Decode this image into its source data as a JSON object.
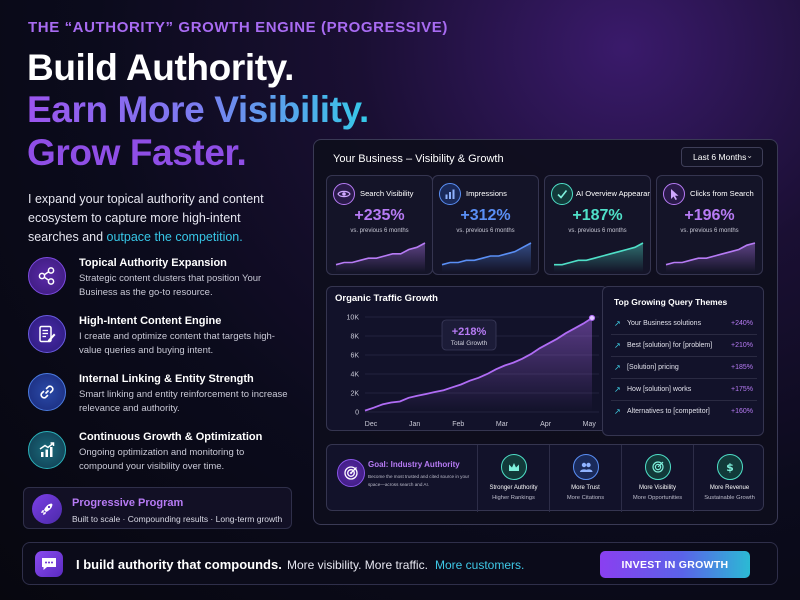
{
  "hero": {
    "kicker": "THE “AUTHORITY” GROWTH ENGINE (PROGRESSIVE)",
    "line1": "Build Authority.",
    "line2": "Earn More Visibility.",
    "line3": "Grow Faster.",
    "intro": "I expand your topical authority and content ecosystem to capture more high-intent searches and ",
    "intro_accent": "outpace the competition."
  },
  "features": [
    {
      "title": "Topical Authority Expansion",
      "desc": "Strategic content clusters that position Your Business as the go-to resource.",
      "icon": "share-nodes-icon"
    },
    {
      "title": "High-Intent Content Engine",
      "desc": "I create and optimize content that targets high-value queries and buying intent.",
      "icon": "document-edit-icon"
    },
    {
      "title": "Internal Linking & Entity Strength",
      "desc": "Smart linking and entity reinforcement to increase relevance and authority.",
      "icon": "link-icon"
    },
    {
      "title": "Continuous Growth & Optimization",
      "desc": "Ongoing optimization and monitoring to compound your visibility over time.",
      "icon": "growth-chart-icon"
    }
  ],
  "program": {
    "title": "Progressive Program",
    "subtitle": "Built to scale · Compounding results · Long-term growth",
    "icon": "rocket-icon"
  },
  "dashboard": {
    "title": "Your Business – Visibility & Growth",
    "period": "Last 6 Months",
    "metrics": [
      {
        "label": "Search Visibility",
        "value": "+235%",
        "compare": "vs. previous 6 months",
        "icon": "eye-icon",
        "color": "#b77bf5",
        "trend": [
          2,
          3,
          3,
          4,
          5,
          5,
          6,
          7,
          7,
          9,
          10,
          12
        ]
      },
      {
        "label": "Impressions",
        "value": "+312%",
        "compare": "vs. previous 6 months",
        "icon": "bar-chart-icon",
        "color": "#5a8ff5",
        "trend": [
          2,
          3,
          3,
          4,
          4,
          5,
          6,
          6,
          7,
          8,
          10,
          12
        ]
      },
      {
        "label": "AI Overview Appearances",
        "value": "+187%",
        "compare": "vs. previous 6 months",
        "icon": "check-circle-icon",
        "color": "#4fe0c8",
        "trend": [
          2,
          2,
          3,
          4,
          4,
          5,
          6,
          7,
          8,
          9,
          10,
          12
        ]
      },
      {
        "label": "Clicks from Search",
        "value": "+196%",
        "compare": "vs. previous 6 months",
        "icon": "cursor-icon",
        "color": "#b77bf5",
        "trend": [
          2,
          3,
          3,
          4,
          5,
          5,
          6,
          7,
          8,
          9,
          11,
          12
        ]
      }
    ],
    "traffic": {
      "title": "Organic Traffic Growth",
      "callout_value": "+218%",
      "callout_label": "Total Growth"
    },
    "queries": {
      "title": "Top Growing Query Themes",
      "items": [
        {
          "text": "Your Business solutions",
          "pct": "+240%"
        },
        {
          "text": "Best [solution] for [problem]",
          "pct": "+210%"
        },
        {
          "text": "[Solution] pricing",
          "pct": "+185%"
        },
        {
          "text": "How [solution] works",
          "pct": "+175%"
        },
        {
          "text": "Alternatives to [competitor]",
          "pct": "+160%"
        }
      ]
    },
    "goal": {
      "title": "Goal: Industry Authority",
      "desc": "Become the most trusted and cited source in your space—across search and AI.",
      "icon": "target-icon",
      "items": [
        {
          "line1": "Stronger Authority",
          "line2": "Higher Rankings",
          "icon": "crown-icon"
        },
        {
          "line1": "More Trust",
          "line2": "More Citations",
          "icon": "users-icon"
        },
        {
          "line1": "More Visibility",
          "line2": "More Opportunities",
          "icon": "target-icon"
        },
        {
          "line1": "More Revenue",
          "line2": "Sustainable Growth",
          "icon": "dollar-icon"
        }
      ]
    }
  },
  "chart_data": {
    "type": "line",
    "title": "Organic Traffic Growth",
    "categories": [
      "Dec",
      "Jan",
      "Feb",
      "Mar",
      "Apr",
      "May"
    ],
    "y_ticks": [
      "0",
      "2K",
      "4K",
      "6K",
      "8K",
      "10K"
    ],
    "ylim": [
      0,
      10000
    ],
    "x": [
      0,
      0.2,
      0.4,
      0.6,
      0.8,
      1.0,
      1.2,
      1.4,
      1.6,
      1.8,
      2.0,
      2.2,
      2.4,
      2.6,
      2.8,
      3.0,
      3.2,
      3.4,
      3.6,
      3.8,
      4.0,
      4.2,
      4.4,
      4.6,
      4.8,
      5.0,
      5.2
    ],
    "values": [
      150,
      450,
      800,
      1000,
      1100,
      1500,
      1700,
      1900,
      2100,
      2300,
      2600,
      2900,
      3300,
      3600,
      4000,
      4500,
      4900,
      5200,
      5600,
      6100,
      6700,
      7200,
      7700,
      8300,
      8800,
      9300,
      9900
    ],
    "color": "#b06cf5",
    "grid": true
  },
  "banner": {
    "main": "I build authority that compounds.",
    "sub": "More visibility. More traffic.",
    "sub_accent": "More customers.",
    "cta": "INVEST IN GROWTH",
    "icon": "chat-bubble-icon"
  }
}
